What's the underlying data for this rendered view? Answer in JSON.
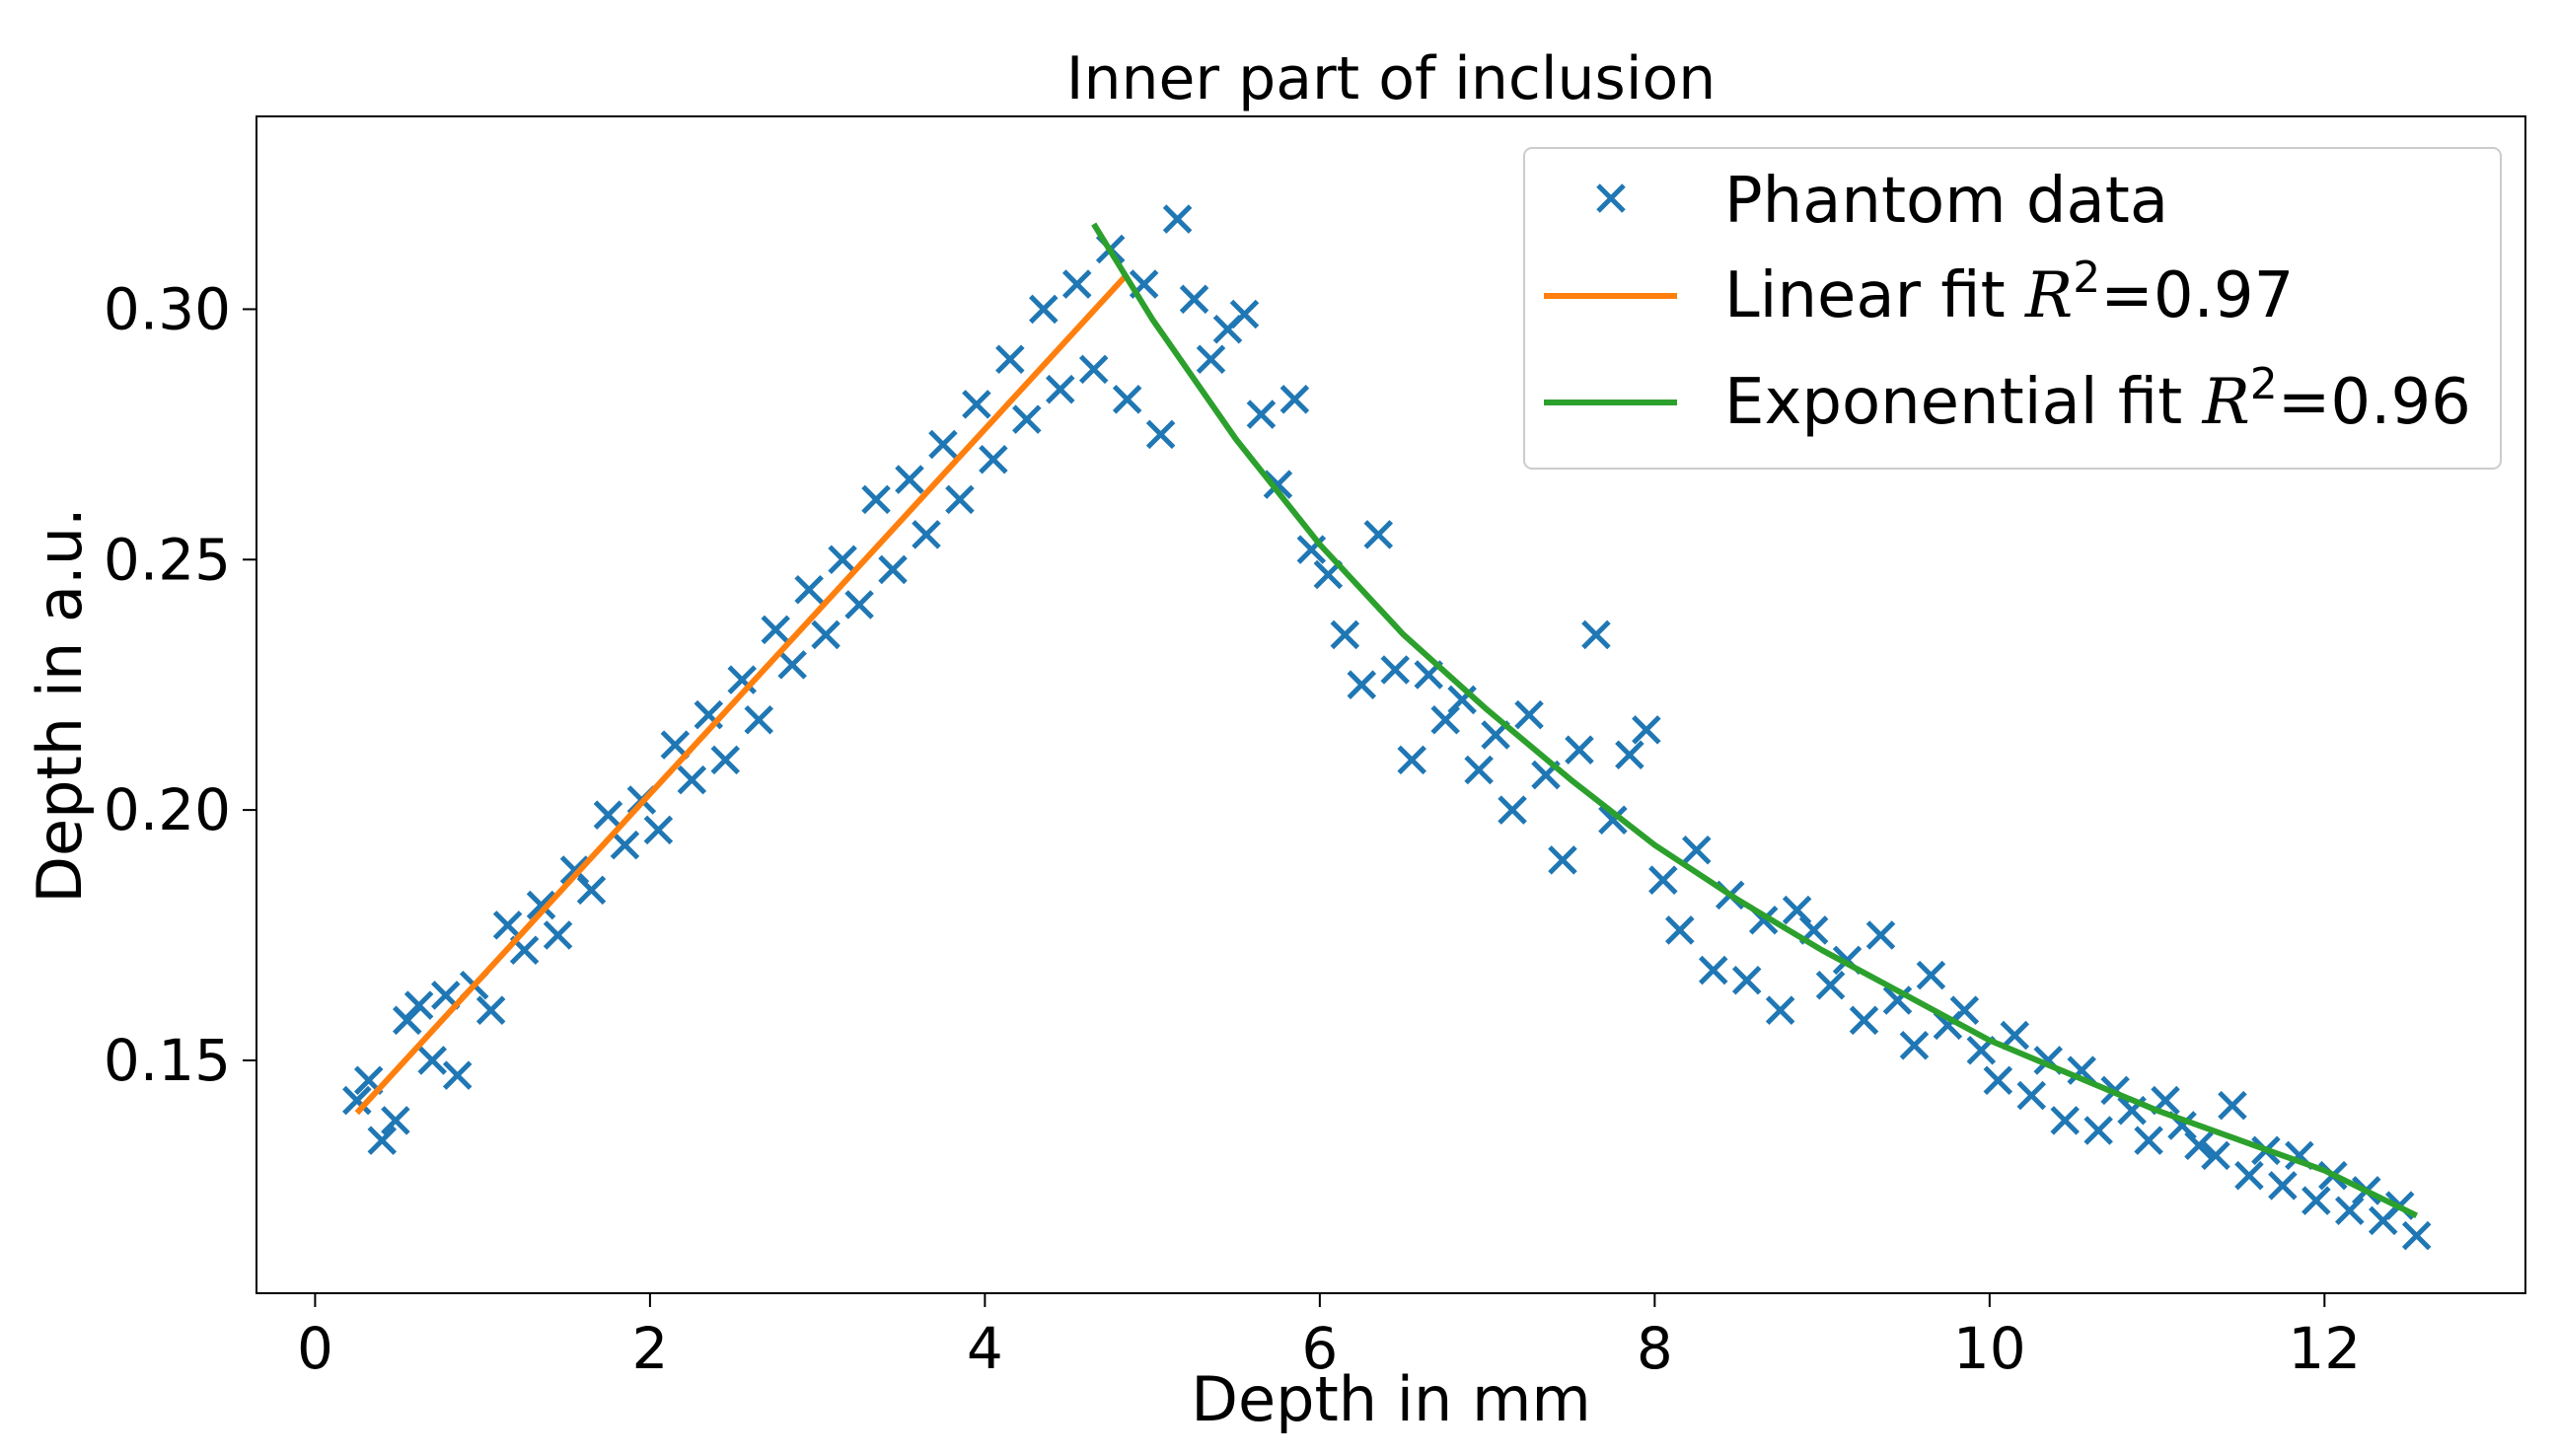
{
  "chart_data": {
    "type": "scatter",
    "title": "Inner part of inclusion",
    "xlabel": "Depth in mm",
    "ylabel": "Depth in a.u.",
    "xlim": [
      -0.35,
      13.2
    ],
    "ylim": [
      0.1035,
      0.3385
    ],
    "xticks": [
      0,
      2,
      4,
      6,
      8,
      10,
      12
    ],
    "yticks": [
      0.15,
      0.2,
      0.25,
      0.3
    ],
    "xtick_labels": [
      "0",
      "2",
      "4",
      "6",
      "8",
      "10",
      "12"
    ],
    "ytick_labels": [
      "0.15",
      "0.20",
      "0.25",
      "0.30"
    ],
    "grid": false,
    "legend_position": "top-right",
    "series": [
      {
        "name": "Phantom data",
        "kind": "scatter",
        "marker": "x",
        "color": "#1f77b4",
        "x": [
          0.25,
          0.32,
          0.4,
          0.48,
          0.55,
          0.62,
          0.7,
          0.78,
          0.85,
          0.95,
          1.05,
          1.15,
          1.25,
          1.35,
          1.45,
          1.55,
          1.65,
          1.75,
          1.85,
          1.95,
          2.05,
          2.15,
          2.25,
          2.35,
          2.45,
          2.55,
          2.65,
          2.75,
          2.85,
          2.95,
          3.05,
          3.15,
          3.25,
          3.35,
          3.45,
          3.55,
          3.65,
          3.75,
          3.85,
          3.95,
          4.05,
          4.15,
          4.25,
          4.35,
          4.45,
          4.55,
          4.65,
          4.75,
          4.85,
          4.95,
          5.05,
          5.15,
          5.25,
          5.35,
          5.45,
          5.55,
          5.65,
          5.75,
          5.85,
          5.95,
          6.05,
          6.15,
          6.25,
          6.35,
          6.45,
          6.55,
          6.65,
          6.75,
          6.85,
          6.95,
          7.05,
          7.15,
          7.25,
          7.35,
          7.45,
          7.55,
          7.65,
          7.75,
          7.85,
          7.95,
          8.05,
          8.15,
          8.25,
          8.35,
          8.45,
          8.55,
          8.65,
          8.75,
          8.85,
          8.95,
          9.05,
          9.15,
          9.25,
          9.35,
          9.45,
          9.55,
          9.65,
          9.75,
          9.85,
          9.95,
          10.05,
          10.15,
          10.25,
          10.35,
          10.45,
          10.55,
          10.65,
          10.75,
          10.85,
          10.95,
          11.05,
          11.15,
          11.25,
          11.35,
          11.45,
          11.55,
          11.65,
          11.75,
          11.85,
          11.95,
          12.05,
          12.15,
          12.25,
          12.35,
          12.45,
          12.55
        ],
        "y": [
          0.142,
          0.146,
          0.134,
          0.138,
          0.158,
          0.161,
          0.15,
          0.163,
          0.147,
          0.165,
          0.16,
          0.177,
          0.172,
          0.181,
          0.175,
          0.188,
          0.184,
          0.199,
          0.193,
          0.202,
          0.196,
          0.213,
          0.206,
          0.219,
          0.21,
          0.226,
          0.218,
          0.236,
          0.229,
          0.244,
          0.235,
          0.25,
          0.241,
          0.262,
          0.248,
          0.266,
          0.255,
          0.273,
          0.262,
          0.281,
          0.27,
          0.29,
          0.278,
          0.3,
          0.284,
          0.305,
          0.288,
          0.312,
          0.282,
          0.305,
          0.275,
          0.318,
          0.302,
          0.29,
          0.296,
          0.299,
          0.279,
          0.265,
          0.282,
          0.252,
          0.247,
          0.235,
          0.225,
          0.255,
          0.228,
          0.21,
          0.227,
          0.218,
          0.222,
          0.208,
          0.215,
          0.2,
          0.219,
          0.207,
          0.19,
          0.212,
          0.235,
          0.198,
          0.211,
          0.216,
          0.186,
          0.176,
          0.192,
          0.168,
          0.183,
          0.166,
          0.178,
          0.16,
          0.18,
          0.176,
          0.165,
          0.17,
          0.158,
          0.175,
          0.162,
          0.153,
          0.167,
          0.157,
          0.16,
          0.152,
          0.146,
          0.155,
          0.143,
          0.15,
          0.138,
          0.148,
          0.136,
          0.144,
          0.14,
          0.134,
          0.142,
          0.137,
          0.133,
          0.131,
          0.141,
          0.127,
          0.132,
          0.125,
          0.131,
          0.122,
          0.127,
          0.12,
          0.124,
          0.118,
          0.121,
          0.115
        ]
      },
      {
        "name": "Linear fit R²=0.97",
        "label_prefix": "Linear fit ",
        "label_value": "=0.97",
        "kind": "line",
        "color": "#ff7f0e",
        "x": [
          0.25,
          4.85
        ],
        "y": [
          0.1395,
          0.307
        ]
      },
      {
        "name": "Exponential fit R²=0.96",
        "label_prefix": "Exponential fit ",
        "label_value": "=0.96",
        "kind": "line",
        "color": "#2ca02c",
        "x": [
          4.65,
          5.0,
          5.5,
          6.0,
          6.5,
          7.0,
          7.5,
          8.0,
          8.5,
          9.0,
          9.5,
          10.0,
          10.5,
          11.0,
          11.5,
          12.0,
          12.55
        ],
        "y": [
          0.317,
          0.298,
          0.274,
          0.253,
          0.235,
          0.22,
          0.206,
          0.193,
          0.182,
          0.172,
          0.163,
          0.154,
          0.147,
          0.14,
          0.134,
          0.128,
          0.119
        ]
      }
    ],
    "r2_symbol": "R",
    "r2_exponent": "2"
  }
}
